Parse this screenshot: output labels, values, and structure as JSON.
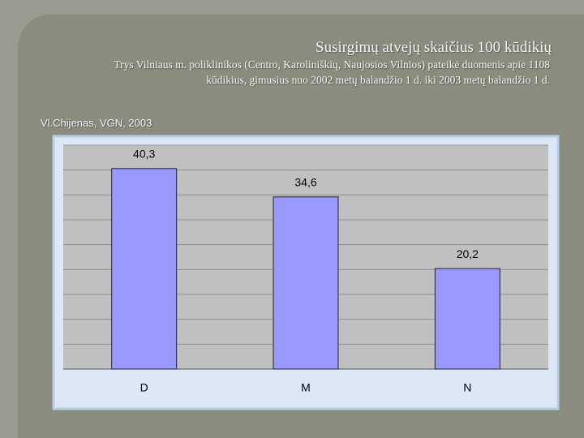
{
  "chart_data": {
    "type": "bar",
    "title": "Susirgimų atvejų skaičius 100 kūdikių",
    "subtitle_lines": [
      "Trys Vilniaus m. poliklinikos (Centro, Karoliniškių, Naujosios Vilnios) pateikė duomenis apie 1108",
      "kūdikius, gimusius nuo 2002 metų balandžio 1 d. iki 2003 metų balandžio 1 d."
    ],
    "source": "Vl.Chijenas, VGN, 2003",
    "categories": [
      "D",
      "M",
      "N"
    ],
    "values": [
      40.3,
      34.6,
      20.2
    ],
    "value_labels": [
      "40,3",
      "34,6",
      "20,2"
    ],
    "color": "#9999ff",
    "ylim": [
      0,
      45
    ],
    "yticks": [
      0,
      5,
      10,
      15,
      20,
      25,
      30,
      35,
      40,
      45
    ],
    "grid": true
  }
}
